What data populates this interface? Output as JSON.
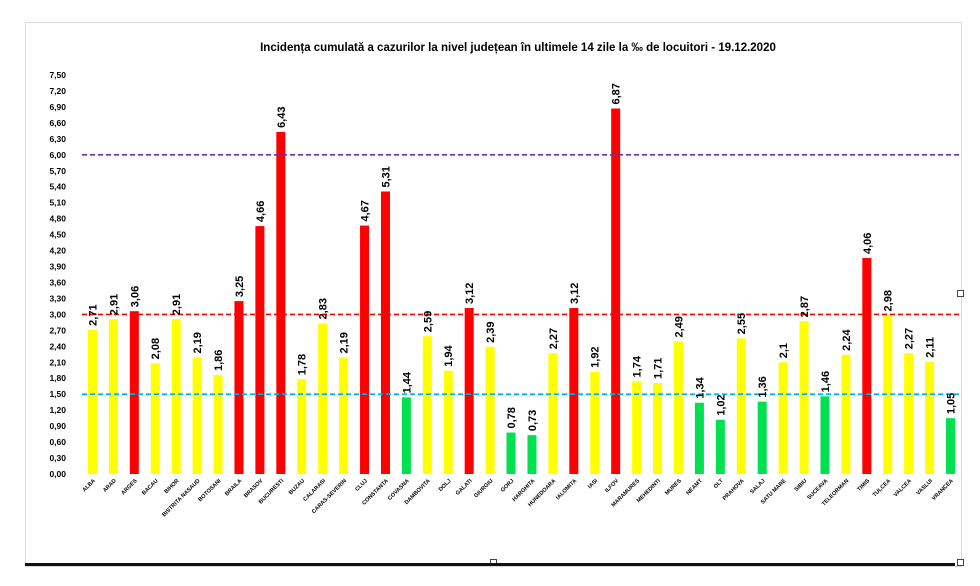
{
  "chart_data": {
    "type": "bar",
    "title": "Incidența cumulată a cazurilor la nivel județean în ultimele 14 zile la ‰ de locuitori - 19.12.2020",
    "categories": [
      "ALBA",
      "ARAD",
      "ARGES",
      "BACAU",
      "BIHOR",
      "BISTRITA NASAUD",
      "BOTOSANI",
      "BRAILA",
      "BRASOV",
      "BUCURESTI",
      "BUZAU",
      "CALARASI",
      "CARAS-SEVERIN",
      "CLUJ",
      "CONSTANTA",
      "COVASNA",
      "DAMBOVITA",
      "DOLJ",
      "GALATI",
      "GIURGIU",
      "GORJ",
      "HARGHITA",
      "HUNEDOARA",
      "IALOMITA",
      "IASI",
      "ILFOV",
      "MARAMURES",
      "MEHEDINTI",
      "MURES",
      "NEAMT",
      "OLT",
      "PRAHOVA",
      "SALAJ",
      "SATU MARE",
      "SIBIU",
      "SUCEAVA",
      "TELEORMAN",
      "TIMIS",
      "TULCEA",
      "VALCEA",
      "VASLUI",
      "VRANCEA"
    ],
    "values": [
      2.71,
      2.91,
      3.06,
      2.08,
      2.91,
      2.19,
      1.86,
      3.25,
      4.66,
      6.43,
      1.78,
      2.83,
      2.19,
      4.67,
      5.31,
      1.44,
      2.59,
      1.94,
      3.12,
      2.39,
      0.78,
      0.73,
      2.27,
      3.12,
      1.92,
      6.87,
      1.74,
      1.71,
      2.49,
      1.34,
      1.02,
      2.55,
      1.36,
      2.1,
      2.87,
      1.46,
      2.24,
      4.06,
      2.98,
      2.27,
      2.11,
      1.05
    ],
    "value_labels": [
      "2,71",
      "2,91",
      "3,06",
      "2,08",
      "2,91",
      "2,19",
      "1,86",
      "3,25",
      "4,66",
      "6,43",
      "1,78",
      "2,83",
      "2,19",
      "4,67",
      "5,31",
      "1,44",
      "2,59",
      "1,94",
      "3,12",
      "2,39",
      "0,78",
      "0,73",
      "2,27",
      "3,12",
      "1,92",
      "6,87",
      "1,74",
      "1,71",
      "2,49",
      "1,34",
      "1,02",
      "2,55",
      "1,36",
      "2,1",
      "2,87",
      "1,46",
      "2,24",
      "4,06",
      "2,98",
      "2,27",
      "2,11",
      "1,05"
    ],
    "ylim": [
      0,
      7.5
    ],
    "yticks": [
      "0,00",
      "0,30",
      "0,60",
      "0,90",
      "1,20",
      "1,50",
      "1,80",
      "2,10",
      "2,40",
      "2,70",
      "3,00",
      "3,30",
      "3,60",
      "3,90",
      "4,20",
      "4,50",
      "4,80",
      "5,10",
      "5,40",
      "5,70",
      "6,00",
      "6,30",
      "6,60",
      "6,90",
      "7,20",
      "7,50"
    ],
    "xlabel": "",
    "ylabel": "",
    "grid": false,
    "thresholds": [
      {
        "value": 6.0,
        "color": "#7030a0",
        "style": "dashed"
      },
      {
        "value": 3.0,
        "color": "#ff0000",
        "style": "dashed"
      },
      {
        "value": 1.5,
        "color": "#00b0f0",
        "style": "dashed"
      }
    ],
    "colors": {
      "green": "#00e050",
      "yellow": "#ffff00",
      "red": "#ff0000"
    },
    "color_rule": "green < 1.5 <= yellow <= 3.0 < red"
  }
}
